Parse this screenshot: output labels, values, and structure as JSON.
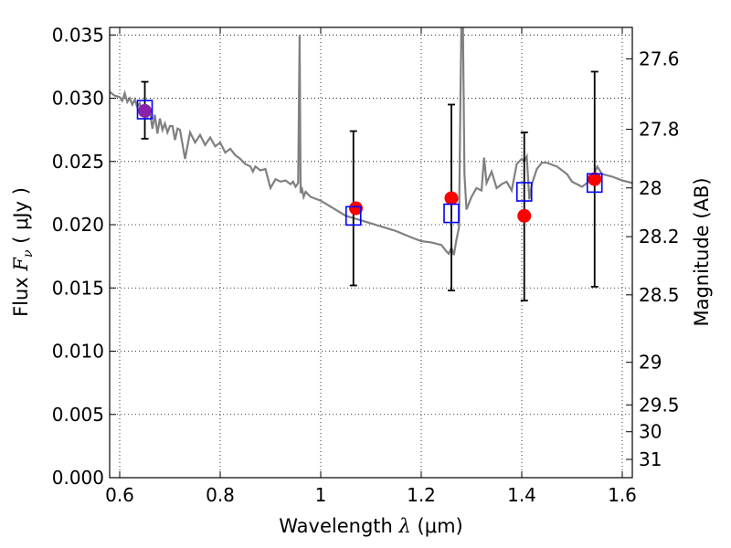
{
  "chart_data": {
    "type": "scatter",
    "xlabel": "Wavelength",
    "xlabel_symbol": "λ",
    "xlabel_unit": "(μm)",
    "ylabel": "Flux",
    "ylabel_symbol": "F",
    "ylabel_sub": "ν",
    "ylabel_unit": "( μJy )",
    "ylabel_right": "Magnitude (AB)",
    "xlim": [
      0.58,
      1.62
    ],
    "ylim": [
      0.0,
      0.0356
    ],
    "x_ticks": [
      {
        "v": 0.6,
        "label": "0.6"
      },
      {
        "v": 0.8,
        "label": "0.8"
      },
      {
        "v": 1.0,
        "label": "1"
      },
      {
        "v": 1.2,
        "label": "1.2"
      },
      {
        "v": 1.4,
        "label": "1.4"
      },
      {
        "v": 1.6,
        "label": "1.6"
      }
    ],
    "y_ticks": [
      {
        "v": 0.0,
        "label": "0.000"
      },
      {
        "v": 0.005,
        "label": "0.005"
      },
      {
        "v": 0.01,
        "label": "0.010"
      },
      {
        "v": 0.015,
        "label": "0.015"
      },
      {
        "v": 0.02,
        "label": "0.020"
      },
      {
        "v": 0.025,
        "label": "0.025"
      },
      {
        "v": 0.03,
        "label": "0.030"
      },
      {
        "v": 0.035,
        "label": "0.035"
      }
    ],
    "mag_ticks": [
      {
        "mag": 27.6,
        "label": "27.6"
      },
      {
        "mag": 27.8,
        "label": "27.8"
      },
      {
        "mag": 28.0,
        "label": "28"
      },
      {
        "mag": 28.2,
        "label": "28.2"
      },
      {
        "mag": 28.5,
        "label": "28.5"
      },
      {
        "mag": 29.0,
        "label": "29"
      },
      {
        "mag": 29.5,
        "label": "29.5"
      },
      {
        "mag": 30.0,
        "label": "30"
      },
      {
        "mag": 31.0,
        "label": "31"
      }
    ],
    "grid": true,
    "colors": {
      "spectrum": "#808080",
      "model": "#0000ff",
      "observed": "#ff0000",
      "optical": "#8b22a8",
      "errorbar": "#000000"
    },
    "spectrum": {
      "x": [
        0.58,
        0.59,
        0.6,
        0.605,
        0.61,
        0.615,
        0.62,
        0.625,
        0.63,
        0.635,
        0.64,
        0.645,
        0.65,
        0.655,
        0.66,
        0.665,
        0.67,
        0.675,
        0.68,
        0.685,
        0.69,
        0.695,
        0.7,
        0.705,
        0.71,
        0.715,
        0.72,
        0.73,
        0.74,
        0.75,
        0.76,
        0.77,
        0.78,
        0.79,
        0.8,
        0.81,
        0.82,
        0.83,
        0.84,
        0.85,
        0.86,
        0.865,
        0.87,
        0.88,
        0.89,
        0.9,
        0.91,
        0.92,
        0.93,
        0.94,
        0.945,
        0.95,
        0.955,
        0.958,
        0.96,
        0.963,
        0.966,
        0.97,
        0.98,
        1.0,
        1.05,
        1.1,
        1.15,
        1.18,
        1.2,
        1.22,
        1.24,
        1.25,
        1.255,
        1.26,
        1.265,
        1.27,
        1.275,
        1.278,
        1.28,
        1.283,
        1.286,
        1.29,
        1.3,
        1.31,
        1.32,
        1.325,
        1.33,
        1.34,
        1.35,
        1.36,
        1.37,
        1.38,
        1.39,
        1.4,
        1.405,
        1.41,
        1.415,
        1.42,
        1.43,
        1.44,
        1.45,
        1.47,
        1.49,
        1.5,
        1.52,
        1.54,
        1.55,
        1.56,
        1.58,
        1.6,
        1.62
      ],
      "y": [
        0.0305,
        0.0302,
        0.0301,
        0.0298,
        0.0304,
        0.0297,
        0.03,
        0.0295,
        0.0299,
        0.0293,
        0.0296,
        0.0288,
        0.0291,
        0.0285,
        0.029,
        0.0276,
        0.0287,
        0.0272,
        0.0284,
        0.0275,
        0.028,
        0.0273,
        0.0278,
        0.0278,
        0.0267,
        0.0276,
        0.0275,
        0.0252,
        0.0273,
        0.0265,
        0.0271,
        0.0263,
        0.0269,
        0.0262,
        0.0265,
        0.0257,
        0.026,
        0.0255,
        0.0252,
        0.0248,
        0.0246,
        0.0242,
        0.0246,
        0.0243,
        0.0244,
        0.0229,
        0.0236,
        0.0234,
        0.0235,
        0.0232,
        0.0234,
        0.023,
        0.0233,
        0.035,
        0.0225,
        0.0228,
        0.0222,
        0.0226,
        0.0222,
        0.0219,
        0.0207,
        0.0201,
        0.0195,
        0.019,
        0.0187,
        0.0186,
        0.0184,
        0.0179,
        0.0177,
        0.0182,
        0.0176,
        0.0188,
        0.0198,
        0.03,
        0.036,
        0.036,
        0.024,
        0.0212,
        0.0222,
        0.0229,
        0.0227,
        0.0253,
        0.0233,
        0.0242,
        0.0229,
        0.0232,
        0.0234,
        0.0227,
        0.0248,
        0.0252,
        0.025,
        0.0254,
        0.022,
        0.0232,
        0.0244,
        0.0249,
        0.0249,
        0.0246,
        0.024,
        0.0234,
        0.023,
        0.0236,
        0.0246,
        0.024,
        0.0238,
        0.0235,
        0.0233
      ]
    },
    "model_points": {
      "marker": "open-square",
      "x": [
        0.65,
        1.065,
        1.26,
        1.405,
        1.545
      ],
      "y": [
        0.0291,
        0.0207,
        0.0209,
        0.0226,
        0.0233
      ],
      "yerr_low": [
        0.0023,
        0.0055,
        0.0061,
        0.0086,
        0.0082
      ],
      "yerr_high": [
        0.0022,
        0.0067,
        0.0086,
        0.0047,
        0.0088
      ]
    },
    "observed_points": {
      "marker": "filled-circle",
      "x": [
        0.65,
        1.07,
        1.26,
        1.405,
        1.545
      ],
      "y": [
        0.029,
        0.0213,
        0.0221,
        0.0207,
        0.0236
      ],
      "colors": [
        "#8b22a8",
        "#ff0000",
        "#ff0000",
        "#ff0000",
        "#ff0000"
      ]
    }
  }
}
